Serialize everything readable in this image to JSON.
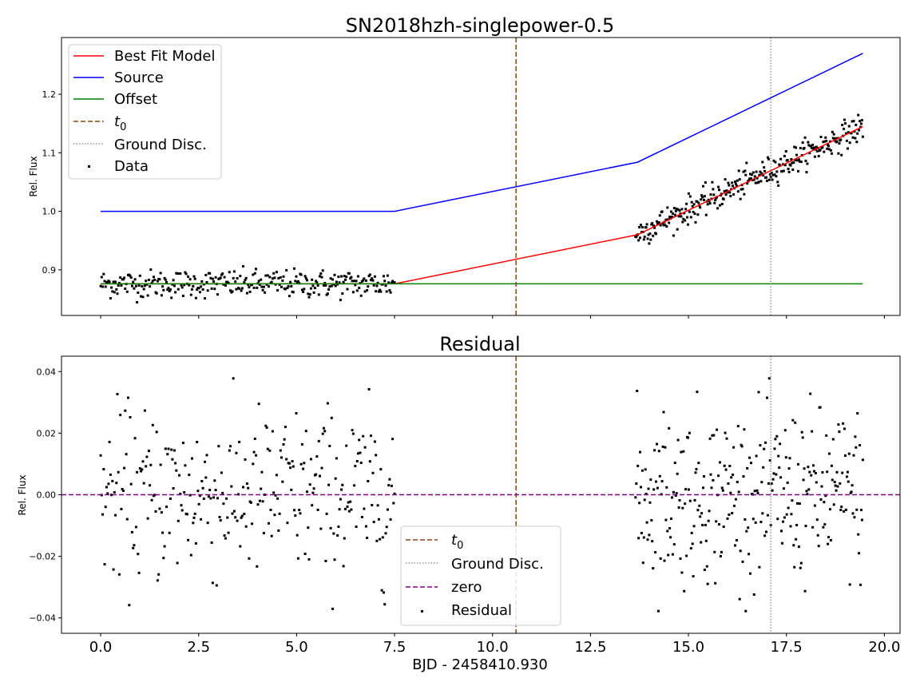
{
  "chart_data": [
    {
      "type": "scatter",
      "title": "SN2018hzh-singlepower-0.5",
      "ylabel": "Rel. Flux",
      "xlim": [
        -1.0,
        20.4
      ],
      "ylim": [
        0.822,
        1.297
      ],
      "yticks": [
        0.9,
        1.0,
        1.1,
        1.2
      ],
      "yticklabels": [
        "0.9",
        "1.0",
        "1.1",
        "1.2"
      ],
      "grid": false,
      "legend_position": "upper left",
      "series": [
        {
          "name": "Best Fit Model",
          "kind": "line",
          "color": "#ff0000",
          "x": [
            0.0,
            7.5,
            13.7,
            19.45
          ],
          "y": [
            0.876,
            0.876,
            0.96,
            1.145
          ]
        },
        {
          "name": "Source",
          "kind": "line",
          "color": "#0000ff",
          "x": [
            0.0,
            7.5,
            13.7,
            19.45
          ],
          "y": [
            1.0,
            1.0,
            1.084,
            1.27
          ]
        },
        {
          "name": "Offset",
          "kind": "line",
          "color": "#008000",
          "x": [
            0.0,
            19.45
          ],
          "y": [
            0.876,
            0.876
          ]
        },
        {
          "name": "$t_0$",
          "display_name": "t",
          "display_sub": "0",
          "kind": "vline",
          "style": "dashed",
          "color": "#8b4513",
          "x": 10.6
        },
        {
          "name": "Ground Disc.",
          "kind": "vline",
          "style": "dotted",
          "color": "#808080",
          "x": 17.1
        },
        {
          "name": "Data",
          "kind": "scatter",
          "color": "#000000",
          "segments": [
            {
              "x": [
                0.0,
                7.5
              ],
              "y": [
                0.876,
                0.876
              ],
              "sigma": 0.012,
              "n": 300
            },
            {
              "x": [
                13.65,
                19.45
              ],
              "y": [
                0.96,
                1.145
              ],
              "sigma": 0.012,
              "n": 300
            }
          ]
        }
      ]
    },
    {
      "type": "scatter",
      "title": "Residual",
      "xlabel": "BJD - 2458410.930",
      "ylabel": "Rel. Flux",
      "xlim": [
        -1.0,
        20.4
      ],
      "ylim": [
        -0.045,
        0.045
      ],
      "yticks": [
        -0.04,
        -0.02,
        0.0,
        0.02,
        0.04
      ],
      "yticklabels": [
        "−0.04",
        "−0.02",
        "0.00",
        "0.02",
        "0.04"
      ],
      "xticks": [
        0.0,
        2.5,
        5.0,
        7.5,
        10.0,
        12.5,
        15.0,
        17.5,
        20.0
      ],
      "xticklabels": [
        "0.0",
        "2.5",
        "5.0",
        "7.5",
        "10.0",
        "12.5",
        "15.0",
        "17.5",
        "20.0"
      ],
      "grid": false,
      "legend_position": "lower center",
      "series": [
        {
          "name": "$t_0$",
          "display_name": "t",
          "display_sub": "0",
          "kind": "vline",
          "style": "dashed",
          "color": "#8b4513",
          "x": 10.6
        },
        {
          "name": "Ground Disc.",
          "kind": "vline",
          "style": "dotted",
          "color": "#808080",
          "x": 17.1
        },
        {
          "name": "zero",
          "kind": "hline",
          "style": "dashed",
          "color": "#800080",
          "y": 0.0
        },
        {
          "name": "Residual",
          "kind": "scatter",
          "color": "#000000",
          "segments": [
            {
              "x": [
                0.0,
                7.5
              ],
              "y": [
                0.0,
                0.0
              ],
              "sigma": 0.014,
              "n": 300
            },
            {
              "x": [
                13.65,
                19.45
              ],
              "y": [
                0.0,
                0.0
              ],
              "sigma": 0.014,
              "n": 300
            }
          ]
        }
      ]
    }
  ]
}
